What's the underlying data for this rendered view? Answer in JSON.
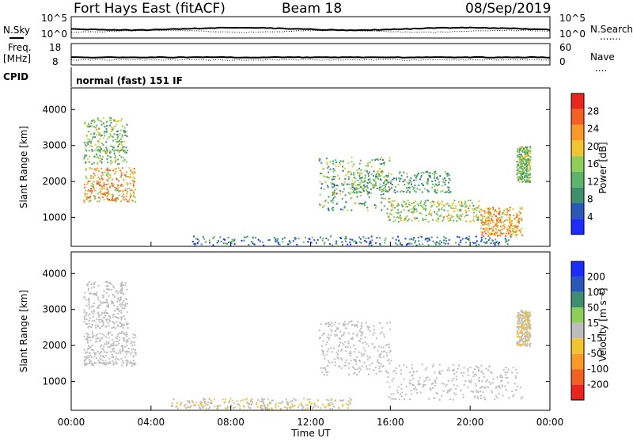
{
  "header": {
    "station": "Fort Hays East (fitACF)",
    "beam": "Beam 18",
    "date": "08/Sep/2019"
  },
  "strip_labels": {
    "nsky": "N.Sky",
    "nsearch": "N.Search",
    "nsearch_dots": ".......",
    "freq": "Freq.",
    "freq_unit": "[MHz]",
    "nave": "Nave",
    "nave_dots": "....",
    "cpid": "CPID",
    "cpid_text": "normal (fast) 151 IF"
  },
  "noise_axis": {
    "left_ticks": [
      "10^5",
      "10^0"
    ],
    "right_ticks": [
      "10^5",
      "10^0"
    ]
  },
  "freq_axis": {
    "left_ticks": [
      "18",
      "8"
    ],
    "right_ticks": [
      "60",
      "0"
    ]
  },
  "xaxis": {
    "label": "Time UT",
    "ticks": [
      "00:00",
      "04:00",
      "08:00",
      "12:00",
      "16:00",
      "20:00",
      "00:00"
    ]
  },
  "colors": {
    "power": [
      "#1a2cff",
      "#2a58b8",
      "#3f8f6e",
      "#5eb36b",
      "#8fce5a",
      "#f3c431",
      "#f79a2a",
      "#f26024",
      "#e8251f"
    ],
    "velocity": [
      "#e8251f",
      "#f26024",
      "#f79a2a",
      "#f3c431",
      "#bdbdbd",
      "#8fce5a",
      "#3f8f6e",
      "#2a58b8",
      "#1a2cff"
    ]
  },
  "chart_data": [
    {
      "type": "heatmap",
      "panel": "power",
      "ylabel": "Slant Range [km]",
      "yticks": [
        "1000",
        "2000",
        "3000",
        "4000"
      ],
      "ylim": [
        200,
        4600
      ],
      "xlim": [
        0,
        24
      ],
      "colorbar": {
        "label": "Power [dB]",
        "ticks": [
          "4",
          "8",
          "12",
          "16",
          "20",
          "24",
          "28"
        ],
        "range": [
          0,
          32
        ]
      },
      "regions": [
        {
          "t": [
            0.6,
            3.2
          ],
          "r": [
            1450,
            2400
          ],
          "v": [
            26,
            22,
            16
          ]
        },
        {
          "t": [
            0.6,
            2.8
          ],
          "r": [
            2500,
            3800
          ],
          "v": [
            14,
            10,
            18
          ]
        },
        {
          "t": [
            12.4,
            16.0
          ],
          "r": [
            1200,
            2700
          ],
          "v": [
            18,
            12,
            8
          ]
        },
        {
          "t": [
            15.8,
            20.5
          ],
          "r": [
            900,
            1500
          ],
          "v": [
            16,
            20,
            12
          ]
        },
        {
          "t": [
            20.5,
            22.6
          ],
          "r": [
            500,
            1300
          ],
          "v": [
            26,
            22,
            18
          ]
        },
        {
          "t": [
            14.0,
            19.0
          ],
          "r": [
            1700,
            2300
          ],
          "v": [
            12,
            8,
            16
          ]
        },
        {
          "t": [
            22.3,
            23.0
          ],
          "r": [
            2000,
            3000
          ],
          "v": [
            14,
            18,
            10
          ]
        },
        {
          "t": [
            6.0,
            22.0
          ],
          "r": [
            250,
            500
          ],
          "v": [
            4,
            8,
            12
          ]
        }
      ]
    },
    {
      "type": "heatmap",
      "panel": "velocity",
      "ylabel": "Slant Range [km]",
      "yticks": [
        "1000",
        "2000",
        "3000",
        "4000"
      ],
      "ylim": [
        200,
        4600
      ],
      "xlim": [
        0,
        24
      ],
      "colorbar": {
        "label": "Velocity [m s⁻¹]",
        "ticks": [
          "200",
          "100",
          "50",
          "15",
          "-15",
          "-50",
          "-100",
          "-200"
        ],
        "range": [
          -300,
          300
        ]
      },
      "regions": [
        {
          "t": [
            0.6,
            3.2
          ],
          "r": [
            1450,
            2400
          ],
          "v": [
            0,
            5,
            -5
          ]
        },
        {
          "t": [
            0.6,
            2.8
          ],
          "r": [
            2500,
            3800
          ],
          "v": [
            -30,
            20,
            0
          ]
        },
        {
          "t": [
            12.4,
            16.0
          ],
          "r": [
            1200,
            2700
          ],
          "v": [
            0,
            -5,
            5
          ]
        },
        {
          "t": [
            15.8,
            22.6
          ],
          "r": [
            500,
            1500
          ],
          "v": [
            0,
            8,
            -8
          ]
        },
        {
          "t": [
            22.3,
            23.0
          ],
          "r": [
            2000,
            3000
          ],
          "v": [
            -40,
            0,
            30
          ]
        },
        {
          "t": [
            5.0,
            14.0
          ],
          "r": [
            250,
            550
          ],
          "v": [
            -30,
            -60,
            30
          ]
        }
      ]
    }
  ]
}
